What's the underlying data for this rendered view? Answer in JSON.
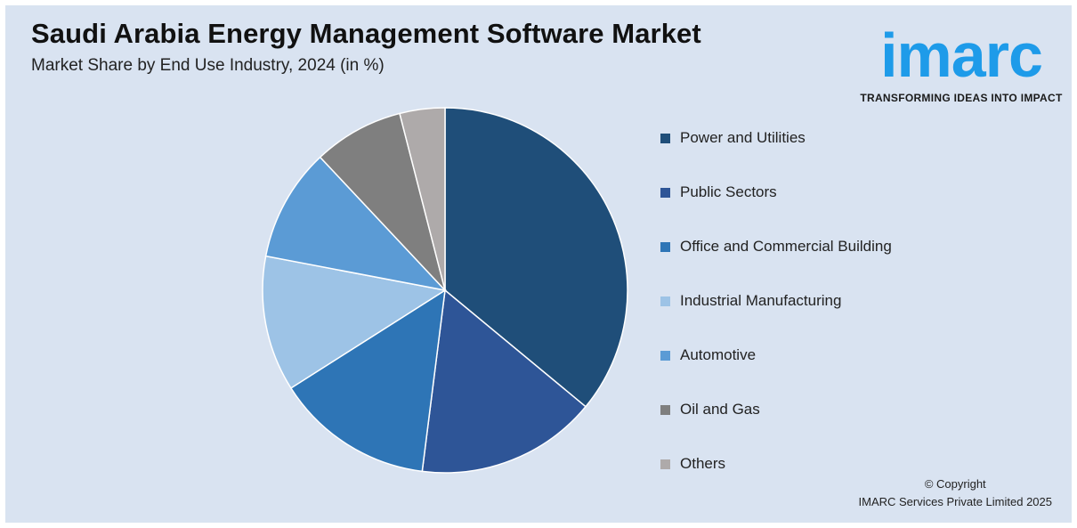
{
  "header": {
    "title": "Saudi Arabia Energy Management Software Market",
    "subtitle": "Market Share by End Use Industry, 2024 (in %)"
  },
  "logo": {
    "wordmark": "imarc",
    "tagline": "TRANSFORMING IDEAS INTO IMPACT",
    "color": "#1e9be9"
  },
  "chart_data": {
    "type": "pie",
    "title": "Saudi Arabia Energy Management Software Market",
    "subtitle": "Market Share by End Use Industry, 2024 (in %)",
    "legend_position": "right",
    "start_angle_deg": 0,
    "direction": "clockwise",
    "slices": [
      {
        "label": "Power and Utilities",
        "value": 36,
        "color": "#1f4e79"
      },
      {
        "label": "Public Sectors",
        "value": 16,
        "color": "#2e5597"
      },
      {
        "label": "Office and Commercial Building",
        "value": 14,
        "color": "#2e75b6"
      },
      {
        "label": "Industrial Manufacturing",
        "value": 12,
        "color": "#9dc3e6"
      },
      {
        "label": "Automotive",
        "value": 10,
        "color": "#5b9bd5"
      },
      {
        "label": "Oil and Gas",
        "value": 8,
        "color": "#7f7f7f"
      },
      {
        "label": "Others",
        "value": 4,
        "color": "#aeaaaa"
      }
    ]
  },
  "footer": {
    "copyright_line1": "© Copyright",
    "copyright_line2": "IMARC Services Private Limited 2025"
  }
}
